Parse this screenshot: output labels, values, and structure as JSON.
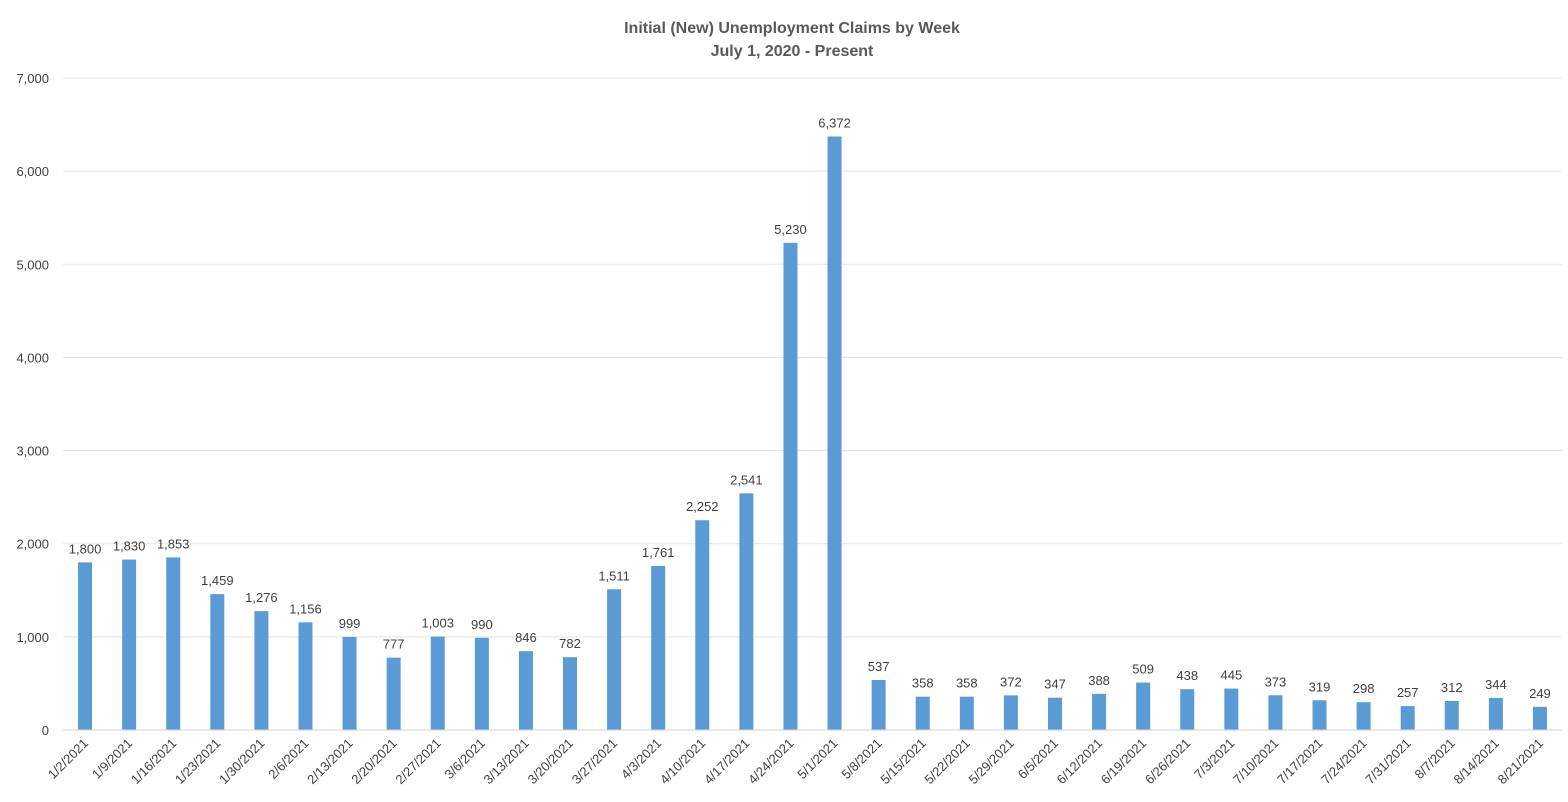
{
  "chart_data": {
    "type": "bar",
    "title": "Initial (New) Unemployment Claims by Week",
    "subtitle": "July 1, 2020 - Present",
    "xlabel": "",
    "ylabel": "",
    "ylim": [
      0,
      7000
    ],
    "yticks": [
      "0",
      "1,000",
      "2,000",
      "3,000",
      "4,000",
      "5,000",
      "6,000",
      "7,000"
    ],
    "grid": true,
    "legend": "none",
    "bar_color": "#5b9bd5",
    "categories": [
      "1/2/2021",
      "1/9/2021",
      "1/16/2021",
      "1/23/2021",
      "1/30/2021",
      "2/6/2021",
      "2/13/2021",
      "2/20/2021",
      "2/27/2021",
      "3/6/2021",
      "3/13/2021",
      "3/20/2021",
      "3/27/2021",
      "4/3/2021",
      "4/10/2021",
      "4/17/2021",
      "4/24/2021",
      "5/1/2021",
      "5/8/2021",
      "5/15/2021",
      "5/22/2021",
      "5/29/2021",
      "6/5/2021",
      "6/12/2021",
      "6/19/2021",
      "6/26/2021",
      "7/3/2021",
      "7/10/2021",
      "7/17/2021",
      "7/24/2021",
      "7/31/2021",
      "8/7/2021",
      "8/14/2021",
      "8/21/2021"
    ],
    "values": [
      1800,
      1830,
      1853,
      1459,
      1276,
      1156,
      999,
      777,
      1003,
      990,
      846,
      782,
      1511,
      1761,
      2252,
      2541,
      5230,
      6372,
      537,
      358,
      358,
      372,
      347,
      388,
      509,
      438,
      445,
      373,
      319,
      298,
      257,
      312,
      344,
      249
    ],
    "value_labels": [
      "1,800",
      "1,830",
      "1,853",
      "1,459",
      "1,276",
      "1,156",
      "999",
      "777",
      "1,003",
      "990",
      "846",
      "782",
      "1,511",
      "1,761",
      "2,252",
      "2,541",
      "5,230",
      "6,372",
      "537",
      "358",
      "358",
      "372",
      "347",
      "388",
      "509",
      "438",
      "445",
      "373",
      "319",
      "298",
      "257",
      "312",
      "344",
      "249"
    ]
  }
}
